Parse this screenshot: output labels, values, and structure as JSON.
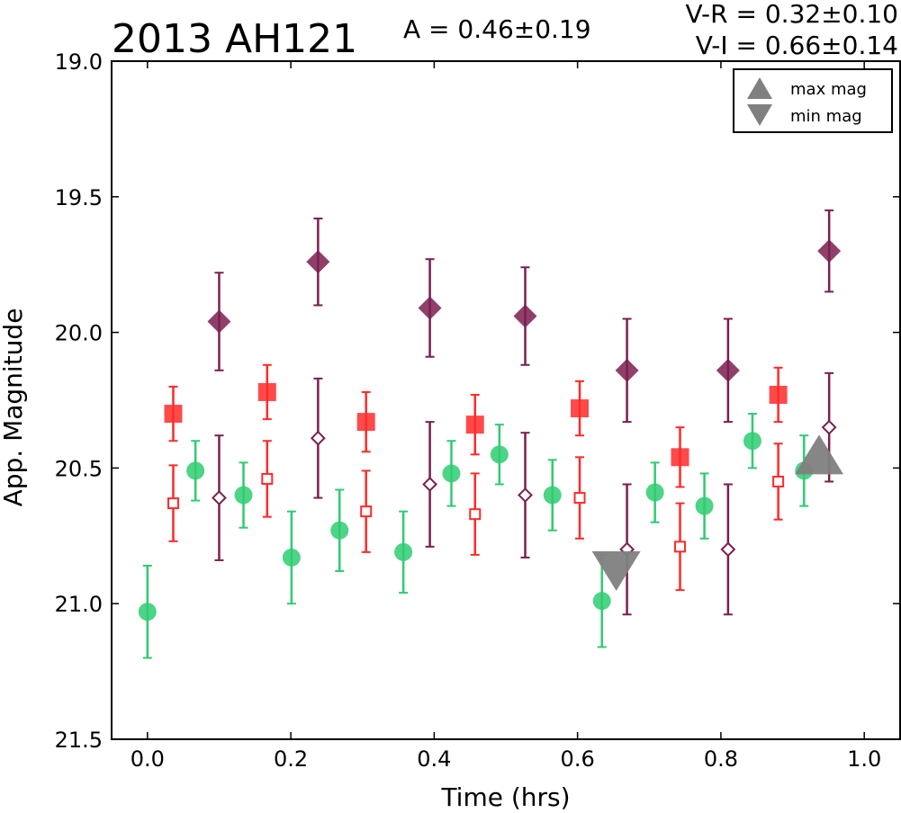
{
  "chart_data": {
    "type": "scatter",
    "title": "2013 AH121",
    "annotations": {
      "amplitude": "A  = 0.46±0.19",
      "v_r": "V-R = 0.32±0.10",
      "v_i": "V-I  = 0.66±0.14"
    },
    "xlabel": "Time (hrs)",
    "ylabel": "App. Magnitude",
    "xlim": [
      -0.05,
      1.05
    ],
    "ylim": [
      21.5,
      19.0
    ],
    "y_inverted": true,
    "xticks": [
      "0.0",
      "0.2",
      "0.4",
      "0.6",
      "0.8",
      "1.0"
    ],
    "xtick_values": [
      0.0,
      0.2,
      0.4,
      0.6,
      0.8,
      1.0
    ],
    "yticks": [
      "19.0",
      "19.5",
      "20.0",
      "20.5",
      "21.0",
      "21.5"
    ],
    "ytick_values": [
      19.0,
      19.5,
      20.0,
      20.5,
      21.0,
      21.5
    ],
    "grid": false,
    "legend": {
      "placement": "top-right",
      "entries": [
        {
          "label": "max mag",
          "marker": "triangle-up",
          "color": "#808080"
        },
        {
          "label": "min mag",
          "marker": "triangle-down",
          "color": "#808080"
        }
      ]
    },
    "series": [
      {
        "marker": "circle",
        "color": "#2ecc71",
        "fill": "filled",
        "points": [
          [
            0.0,
            21.03,
            0.17
          ],
          [
            0.067,
            20.51,
            0.11
          ],
          [
            0.134,
            20.6,
            0.12
          ],
          [
            0.201,
            20.83,
            0.17
          ],
          [
            0.268,
            20.73,
            0.15
          ],
          [
            0.357,
            20.81,
            0.15
          ],
          [
            0.424,
            20.52,
            0.12
          ],
          [
            0.491,
            20.45,
            0.11
          ],
          [
            0.565,
            20.6,
            0.13
          ],
          [
            0.634,
            20.99,
            0.17
          ],
          [
            0.708,
            20.59,
            0.11
          ],
          [
            0.777,
            20.64,
            0.12
          ],
          [
            0.844,
            20.4,
            0.1
          ],
          [
            0.916,
            20.51,
            0.13
          ]
        ]
      },
      {
        "marker": "square",
        "color": "#ff2a2a",
        "fill": "filled",
        "points": [
          [
            0.036,
            20.3,
            0.1
          ],
          [
            0.167,
            20.22,
            0.1
          ],
          [
            0.305,
            20.33,
            0.11
          ],
          [
            0.457,
            20.34,
            0.11
          ],
          [
            0.603,
            20.28,
            0.1
          ],
          [
            0.743,
            20.46,
            0.11
          ],
          [
            0.88,
            20.23,
            0.1
          ]
        ]
      },
      {
        "marker": "square",
        "color": "#ff2a2a",
        "fill": "open",
        "points": [
          [
            0.036,
            20.63,
            0.14
          ],
          [
            0.167,
            20.54,
            0.14
          ],
          [
            0.305,
            20.66,
            0.15
          ],
          [
            0.457,
            20.67,
            0.15
          ],
          [
            0.603,
            20.61,
            0.15
          ],
          [
            0.743,
            20.79,
            0.16
          ],
          [
            0.88,
            20.55,
            0.14
          ]
        ]
      },
      {
        "marker": "diamond",
        "color": "#7b1f4f",
        "fill": "filled",
        "points": [
          [
            0.1,
            19.96,
            0.18
          ],
          [
            0.238,
            19.74,
            0.16
          ],
          [
            0.394,
            19.91,
            0.18
          ],
          [
            0.527,
            19.94,
            0.18
          ],
          [
            0.669,
            20.14,
            0.19
          ],
          [
            0.81,
            20.14,
            0.19
          ],
          [
            0.951,
            19.7,
            0.15
          ]
        ]
      },
      {
        "marker": "diamond",
        "color": "#7b1f4f",
        "fill": "open",
        "points": [
          [
            0.1,
            20.61,
            0.23
          ],
          [
            0.238,
            20.39,
            0.22
          ],
          [
            0.394,
            20.56,
            0.23
          ],
          [
            0.527,
            20.6,
            0.23
          ],
          [
            0.669,
            20.8,
            0.24
          ],
          [
            0.81,
            20.8,
            0.24
          ],
          [
            0.951,
            20.35,
            0.2
          ]
        ]
      }
    ],
    "extrema": [
      {
        "label": "max mag",
        "marker": "triangle-up",
        "color": "#808080",
        "x": 0.937,
        "y": 20.45
      },
      {
        "label": "min mag",
        "marker": "triangle-down",
        "color": "#808080",
        "x": 0.654,
        "y": 20.88
      }
    ]
  }
}
